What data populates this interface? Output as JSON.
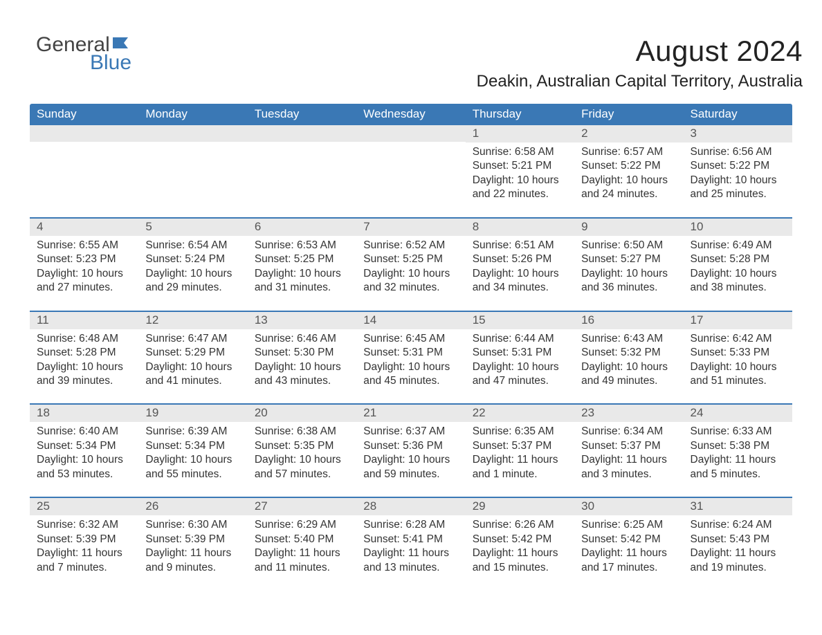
{
  "logo": {
    "word1": "General",
    "word2": "Blue",
    "word1_color": "#444444",
    "word2_color": "#3a78b5",
    "flag_color": "#3a78b5",
    "fontsize": 30
  },
  "title": {
    "month": "August 2024",
    "month_fontsize": 42,
    "location": "Deakin, Australian Capital Territory, Australia",
    "location_fontsize": 24,
    "text_color": "#222222"
  },
  "styling": {
    "header_bg": "#3a78b5",
    "header_text_color": "#ffffff",
    "daynum_bg": "#e9e9e9",
    "daynum_color": "#555555",
    "body_text_color": "#333333",
    "row_divider_color": "#3a78b5",
    "page_bg": "#ffffff",
    "dow_fontsize": 17,
    "daynum_fontsize": 17,
    "body_fontsize": 15.5
  },
  "days_of_week": [
    "Sunday",
    "Monday",
    "Tuesday",
    "Wednesday",
    "Thursday",
    "Friday",
    "Saturday"
  ],
  "weeks": [
    [
      {
        "empty": true
      },
      {
        "empty": true
      },
      {
        "empty": true
      },
      {
        "empty": true
      },
      {
        "day": "1",
        "sunrise": "Sunrise: 6:58 AM",
        "sunset": "Sunset: 5:21 PM",
        "daylight1": "Daylight: 10 hours",
        "daylight2": "and 22 minutes."
      },
      {
        "day": "2",
        "sunrise": "Sunrise: 6:57 AM",
        "sunset": "Sunset: 5:22 PM",
        "daylight1": "Daylight: 10 hours",
        "daylight2": "and 24 minutes."
      },
      {
        "day": "3",
        "sunrise": "Sunrise: 6:56 AM",
        "sunset": "Sunset: 5:22 PM",
        "daylight1": "Daylight: 10 hours",
        "daylight2": "and 25 minutes."
      }
    ],
    [
      {
        "day": "4",
        "sunrise": "Sunrise: 6:55 AM",
        "sunset": "Sunset: 5:23 PM",
        "daylight1": "Daylight: 10 hours",
        "daylight2": "and 27 minutes."
      },
      {
        "day": "5",
        "sunrise": "Sunrise: 6:54 AM",
        "sunset": "Sunset: 5:24 PM",
        "daylight1": "Daylight: 10 hours",
        "daylight2": "and 29 minutes."
      },
      {
        "day": "6",
        "sunrise": "Sunrise: 6:53 AM",
        "sunset": "Sunset: 5:25 PM",
        "daylight1": "Daylight: 10 hours",
        "daylight2": "and 31 minutes."
      },
      {
        "day": "7",
        "sunrise": "Sunrise: 6:52 AM",
        "sunset": "Sunset: 5:25 PM",
        "daylight1": "Daylight: 10 hours",
        "daylight2": "and 32 minutes."
      },
      {
        "day": "8",
        "sunrise": "Sunrise: 6:51 AM",
        "sunset": "Sunset: 5:26 PM",
        "daylight1": "Daylight: 10 hours",
        "daylight2": "and 34 minutes."
      },
      {
        "day": "9",
        "sunrise": "Sunrise: 6:50 AM",
        "sunset": "Sunset: 5:27 PM",
        "daylight1": "Daylight: 10 hours",
        "daylight2": "and 36 minutes."
      },
      {
        "day": "10",
        "sunrise": "Sunrise: 6:49 AM",
        "sunset": "Sunset: 5:28 PM",
        "daylight1": "Daylight: 10 hours",
        "daylight2": "and 38 minutes."
      }
    ],
    [
      {
        "day": "11",
        "sunrise": "Sunrise: 6:48 AM",
        "sunset": "Sunset: 5:28 PM",
        "daylight1": "Daylight: 10 hours",
        "daylight2": "and 39 minutes."
      },
      {
        "day": "12",
        "sunrise": "Sunrise: 6:47 AM",
        "sunset": "Sunset: 5:29 PM",
        "daylight1": "Daylight: 10 hours",
        "daylight2": "and 41 minutes."
      },
      {
        "day": "13",
        "sunrise": "Sunrise: 6:46 AM",
        "sunset": "Sunset: 5:30 PM",
        "daylight1": "Daylight: 10 hours",
        "daylight2": "and 43 minutes."
      },
      {
        "day": "14",
        "sunrise": "Sunrise: 6:45 AM",
        "sunset": "Sunset: 5:31 PM",
        "daylight1": "Daylight: 10 hours",
        "daylight2": "and 45 minutes."
      },
      {
        "day": "15",
        "sunrise": "Sunrise: 6:44 AM",
        "sunset": "Sunset: 5:31 PM",
        "daylight1": "Daylight: 10 hours",
        "daylight2": "and 47 minutes."
      },
      {
        "day": "16",
        "sunrise": "Sunrise: 6:43 AM",
        "sunset": "Sunset: 5:32 PM",
        "daylight1": "Daylight: 10 hours",
        "daylight2": "and 49 minutes."
      },
      {
        "day": "17",
        "sunrise": "Sunrise: 6:42 AM",
        "sunset": "Sunset: 5:33 PM",
        "daylight1": "Daylight: 10 hours",
        "daylight2": "and 51 minutes."
      }
    ],
    [
      {
        "day": "18",
        "sunrise": "Sunrise: 6:40 AM",
        "sunset": "Sunset: 5:34 PM",
        "daylight1": "Daylight: 10 hours",
        "daylight2": "and 53 minutes."
      },
      {
        "day": "19",
        "sunrise": "Sunrise: 6:39 AM",
        "sunset": "Sunset: 5:34 PM",
        "daylight1": "Daylight: 10 hours",
        "daylight2": "and 55 minutes."
      },
      {
        "day": "20",
        "sunrise": "Sunrise: 6:38 AM",
        "sunset": "Sunset: 5:35 PM",
        "daylight1": "Daylight: 10 hours",
        "daylight2": "and 57 minutes."
      },
      {
        "day": "21",
        "sunrise": "Sunrise: 6:37 AM",
        "sunset": "Sunset: 5:36 PM",
        "daylight1": "Daylight: 10 hours",
        "daylight2": "and 59 minutes."
      },
      {
        "day": "22",
        "sunrise": "Sunrise: 6:35 AM",
        "sunset": "Sunset: 5:37 PM",
        "daylight1": "Daylight: 11 hours",
        "daylight2": "and 1 minute."
      },
      {
        "day": "23",
        "sunrise": "Sunrise: 6:34 AM",
        "sunset": "Sunset: 5:37 PM",
        "daylight1": "Daylight: 11 hours",
        "daylight2": "and 3 minutes."
      },
      {
        "day": "24",
        "sunrise": "Sunrise: 6:33 AM",
        "sunset": "Sunset: 5:38 PM",
        "daylight1": "Daylight: 11 hours",
        "daylight2": "and 5 minutes."
      }
    ],
    [
      {
        "day": "25",
        "sunrise": "Sunrise: 6:32 AM",
        "sunset": "Sunset: 5:39 PM",
        "daylight1": "Daylight: 11 hours",
        "daylight2": "and 7 minutes."
      },
      {
        "day": "26",
        "sunrise": "Sunrise: 6:30 AM",
        "sunset": "Sunset: 5:39 PM",
        "daylight1": "Daylight: 11 hours",
        "daylight2": "and 9 minutes."
      },
      {
        "day": "27",
        "sunrise": "Sunrise: 6:29 AM",
        "sunset": "Sunset: 5:40 PM",
        "daylight1": "Daylight: 11 hours",
        "daylight2": "and 11 minutes."
      },
      {
        "day": "28",
        "sunrise": "Sunrise: 6:28 AM",
        "sunset": "Sunset: 5:41 PM",
        "daylight1": "Daylight: 11 hours",
        "daylight2": "and 13 minutes."
      },
      {
        "day": "29",
        "sunrise": "Sunrise: 6:26 AM",
        "sunset": "Sunset: 5:42 PM",
        "daylight1": "Daylight: 11 hours",
        "daylight2": "and 15 minutes."
      },
      {
        "day": "30",
        "sunrise": "Sunrise: 6:25 AM",
        "sunset": "Sunset: 5:42 PM",
        "daylight1": "Daylight: 11 hours",
        "daylight2": "and 17 minutes."
      },
      {
        "day": "31",
        "sunrise": "Sunrise: 6:24 AM",
        "sunset": "Sunset: 5:43 PM",
        "daylight1": "Daylight: 11 hours",
        "daylight2": "and 19 minutes."
      }
    ]
  ]
}
